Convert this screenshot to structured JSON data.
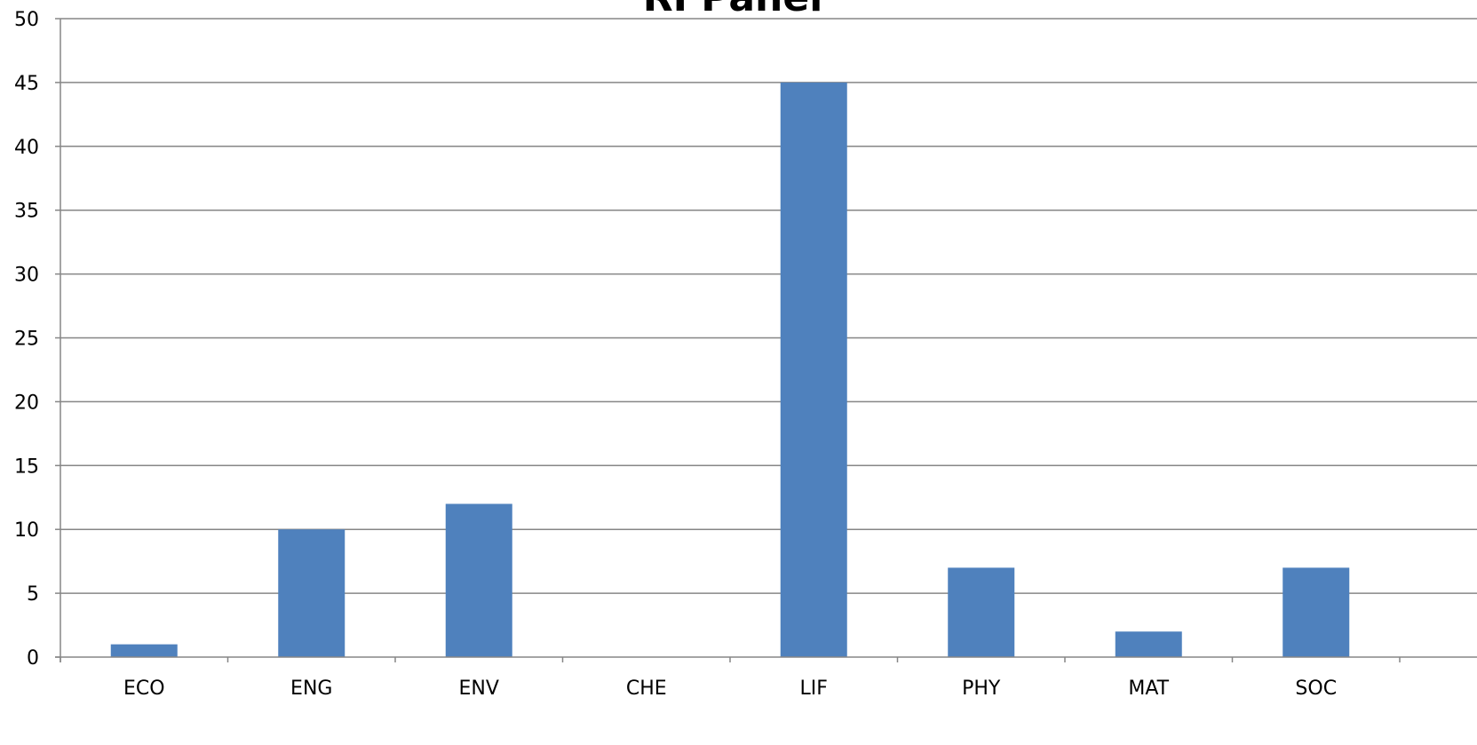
{
  "chart_data": {
    "type": "bar",
    "title": "RI Panel",
    "categories": [
      "ECO",
      "ENG",
      "ENV",
      "CHE",
      "LIF",
      "PHY",
      "MAT",
      "SOC"
    ],
    "values": [
      1,
      10,
      12,
      0,
      45,
      7,
      2,
      7
    ],
    "ylim": [
      0,
      50
    ],
    "yticks": [
      0,
      5,
      10,
      15,
      20,
      25,
      30,
      35,
      40,
      45,
      50
    ],
    "xlabel": "",
    "ylabel": "",
    "grid": true,
    "legend": "none",
    "colors": {
      "bar": "#4f81bd",
      "gridline": "#868686",
      "axis": "#868686"
    }
  }
}
